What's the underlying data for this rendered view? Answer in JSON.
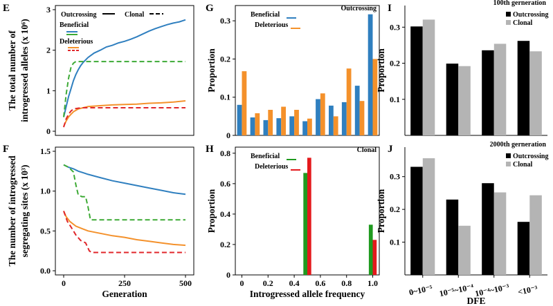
{
  "colors": {
    "blue": "#2f7fbf",
    "orange": "#f4912b",
    "green": "#3daa35",
    "red": "#e0262a",
    "black": "#000000",
    "gray": "#b4b4b4",
    "red_bar": "#e4191c",
    "green_bar": "#1f9a1f"
  },
  "chart_data": [
    {
      "panel": "E",
      "type": "line",
      "ylabel_line1": "The total number of",
      "ylabel_line2": "introgressed alleles (x 10⁶)",
      "xlim": [
        0,
        500
      ],
      "ylim": [
        0,
        3
      ],
      "yticks": [
        {
          "v": 0,
          "label": "0"
        },
        {
          "v": 1,
          "label": "1"
        },
        {
          "v": 2,
          "label": "2"
        },
        {
          "v": 3,
          "label": "3"
        }
      ],
      "legend": {
        "outcrossing": "Outcrossing",
        "clonal": "Clonal",
        "beneficial": "Beneficial",
        "deleterious": "Deleterious"
      },
      "series": [
        {
          "name": "Beneficial outcrossing",
          "color": "blue",
          "dash": false,
          "points": [
            [
              0,
              0.35
            ],
            [
              10,
              0.6
            ],
            [
              20,
              0.85
            ],
            [
              30,
              1.05
            ],
            [
              40,
              1.25
            ],
            [
              50,
              1.4
            ],
            [
              60,
              1.52
            ],
            [
              70,
              1.62
            ],
            [
              80,
              1.7
            ],
            [
              100,
              1.82
            ],
            [
              125,
              1.93
            ],
            [
              150,
              2.0
            ],
            [
              175,
              2.08
            ],
            [
              200,
              2.12
            ],
            [
              225,
              2.18
            ],
            [
              250,
              2.22
            ],
            [
              275,
              2.27
            ],
            [
              300,
              2.33
            ],
            [
              325,
              2.4
            ],
            [
              350,
              2.47
            ],
            [
              375,
              2.53
            ],
            [
              400,
              2.58
            ],
            [
              425,
              2.63
            ],
            [
              450,
              2.67
            ],
            [
              475,
              2.7
            ],
            [
              500,
              2.75
            ]
          ]
        },
        {
          "name": "Beneficial clonal",
          "color": "green",
          "dash": true,
          "points": [
            [
              0,
              0.35
            ],
            [
              10,
              0.9
            ],
            [
              20,
              1.3
            ],
            [
              30,
              1.58
            ],
            [
              40,
              1.68
            ],
            [
              50,
              1.72
            ],
            [
              75,
              1.72
            ],
            [
              500,
              1.72
            ]
          ]
        },
        {
          "name": "Deleterious outcrossing",
          "color": "orange",
          "dash": false,
          "points": [
            [
              0,
              0.12
            ],
            [
              10,
              0.25
            ],
            [
              20,
              0.35
            ],
            [
              30,
              0.42
            ],
            [
              40,
              0.48
            ],
            [
              60,
              0.55
            ],
            [
              80,
              0.58
            ],
            [
              100,
              0.61
            ],
            [
              150,
              0.63
            ],
            [
              200,
              0.65
            ],
            [
              250,
              0.66
            ],
            [
              300,
              0.67
            ],
            [
              350,
              0.69
            ],
            [
              400,
              0.7
            ],
            [
              450,
              0.72
            ],
            [
              500,
              0.75
            ]
          ]
        },
        {
          "name": "Deleterious clonal",
          "color": "red",
          "dash": true,
          "points": [
            [
              0,
              0.1
            ],
            [
              10,
              0.3
            ],
            [
              20,
              0.42
            ],
            [
              30,
              0.5
            ],
            [
              40,
              0.55
            ],
            [
              60,
              0.57
            ],
            [
              80,
              0.58
            ],
            [
              500,
              0.58
            ]
          ]
        }
      ]
    },
    {
      "panel": "F",
      "type": "line",
      "ylabel_line1": "The number of introgressed",
      "ylabel_line2": "segregating sites (x 10³)",
      "xlabel": "Generation",
      "xlim": [
        0,
        500
      ],
      "ylim": [
        0,
        1.5
      ],
      "xticks": [
        {
          "v": 0,
          "label": "0"
        },
        {
          "v": 250,
          "label": "250"
        },
        {
          "v": 500,
          "label": "500"
        }
      ],
      "yticks": [
        {
          "v": 0,
          "label": "0.0"
        },
        {
          "v": 0.5,
          "label": "0.5"
        },
        {
          "v": 1,
          "label": "1.0"
        },
        {
          "v": 1.5,
          "label": "1.5"
        }
      ],
      "series": [
        {
          "name": "Beneficial outcrossing",
          "color": "blue",
          "dash": false,
          "points": [
            [
              0,
              1.33
            ],
            [
              20,
              1.3
            ],
            [
              40,
              1.28
            ],
            [
              60,
              1.25
            ],
            [
              80,
              1.23
            ],
            [
              100,
              1.21
            ],
            [
              150,
              1.17
            ],
            [
              200,
              1.13
            ],
            [
              250,
              1.1
            ],
            [
              300,
              1.07
            ],
            [
              350,
              1.04
            ],
            [
              400,
              1.01
            ],
            [
              450,
              0.98
            ],
            [
              500,
              0.96
            ]
          ]
        },
        {
          "name": "Beneficial clonal",
          "color": "green",
          "dash": true,
          "points": [
            [
              0,
              1.33
            ],
            [
              20,
              1.3
            ],
            [
              40,
              1.24
            ],
            [
              50,
              1.08
            ],
            [
              60,
              0.95
            ],
            [
              75,
              0.93
            ],
            [
              90,
              0.93
            ],
            [
              100,
              0.8
            ],
            [
              110,
              0.64
            ],
            [
              500,
              0.64
            ]
          ]
        },
        {
          "name": "Deleterious outcrossing",
          "color": "orange",
          "dash": false,
          "points": [
            [
              0,
              0.75
            ],
            [
              10,
              0.68
            ],
            [
              25,
              0.62
            ],
            [
              50,
              0.56
            ],
            [
              75,
              0.53
            ],
            [
              100,
              0.5
            ],
            [
              150,
              0.47
            ],
            [
              200,
              0.44
            ],
            [
              250,
              0.42
            ],
            [
              300,
              0.39
            ],
            [
              350,
              0.37
            ],
            [
              400,
              0.35
            ],
            [
              450,
              0.33
            ],
            [
              500,
              0.32
            ]
          ]
        },
        {
          "name": "Deleterious clonal",
          "color": "red",
          "dash": true,
          "points": [
            [
              0,
              0.75
            ],
            [
              15,
              0.62
            ],
            [
              30,
              0.55
            ],
            [
              50,
              0.45
            ],
            [
              70,
              0.38
            ],
            [
              90,
              0.35
            ],
            [
              105,
              0.25
            ],
            [
              115,
              0.23
            ],
            [
              500,
              0.23
            ]
          ]
        }
      ]
    },
    {
      "panel": "G",
      "type": "bar",
      "title": "Outcrossing",
      "ylabel": "Proportion",
      "xlim": [
        -0.05,
        1.05
      ],
      "ylim": [
        0,
        0.34
      ],
      "bar_width": 0.036,
      "yticks": [
        {
          "v": 0,
          "label": "0"
        },
        {
          "v": 0.1,
          "label": "0.1"
        },
        {
          "v": 0.2,
          "label": "0.2"
        },
        {
          "v": 0.3,
          "label": "0.3"
        }
      ],
      "legend": {
        "beneficial": "Beneficial",
        "deleterious": "Deleterious"
      },
      "x": [
        0.0,
        0.1,
        0.2,
        0.3,
        0.4,
        0.5,
        0.6,
        0.7,
        0.8,
        0.9,
        1.0
      ],
      "series": [
        {
          "name": "Beneficial",
          "color": "blue",
          "values": [
            0.08,
            0.047,
            0.04,
            0.045,
            0.05,
            0.037,
            0.095,
            0.078,
            0.087,
            0.13,
            0.317
          ]
        },
        {
          "name": "Deleterious",
          "color": "orange",
          "values": [
            0.168,
            0.058,
            0.067,
            0.075,
            0.067,
            0.044,
            0.11,
            0.05,
            0.175,
            0.09,
            0.2
          ]
        }
      ]
    },
    {
      "panel": "H",
      "type": "bar",
      "title": "Clonal",
      "ylabel": "Proportion",
      "xlabel": "Introgressed allele frequency",
      "xlim": [
        -0.05,
        1.05
      ],
      "ylim": [
        0,
        0.84
      ],
      "bar_width": 0.03,
      "xticks": [
        {
          "v": 0,
          "label": "0"
        },
        {
          "v": 0.2,
          "label": "0.2"
        },
        {
          "v": 0.4,
          "label": "0.4"
        },
        {
          "v": 0.6,
          "label": "0.6"
        },
        {
          "v": 0.8,
          "label": "0.8"
        },
        {
          "v": 1.0,
          "label": "1.0"
        }
      ],
      "yticks": [
        {
          "v": 0,
          "label": "0"
        },
        {
          "v": 0.2,
          "label": "0.2"
        },
        {
          "v": 0.4,
          "label": "0.4"
        },
        {
          "v": 0.6,
          "label": "0.6"
        },
        {
          "v": 0.8,
          "label": "0.8"
        }
      ],
      "legend": {
        "beneficial": "Beneficial",
        "deleterious": "Deleterious"
      },
      "x": [
        0.5,
        1.0
      ],
      "series": [
        {
          "name": "Beneficial",
          "color": "green_bar",
          "values": [
            0.67,
            0.33
          ]
        },
        {
          "name": "Deleterious",
          "color": "red_bar",
          "values": [
            0.77,
            0.23
          ]
        }
      ]
    },
    {
      "panel": "I",
      "type": "bar",
      "title": "100th gerneration",
      "ylabel": "Proportion",
      "ylim": [
        0,
        0.36
      ],
      "yticks": [
        {
          "v": 0.1,
          "label": "0.1"
        },
        {
          "v": 0.2,
          "label": "0.2"
        },
        {
          "v": 0.3,
          "label": "0.3"
        }
      ],
      "legend": {
        "outcrossing": "Outcrossing",
        "clonal": "Clonal"
      },
      "categories": [
        "0~10⁻⁵",
        "10⁻⁵~10⁻⁴",
        "10⁻⁴~10⁻³",
        "<10⁻³"
      ],
      "series": [
        {
          "name": "Outcrossing",
          "color": "black",
          "values": [
            0.302,
            0.199,
            0.236,
            0.262
          ]
        },
        {
          "name": "Clonal",
          "color": "gray",
          "values": [
            0.321,
            0.192,
            0.254,
            0.233
          ]
        }
      ]
    },
    {
      "panel": "J",
      "type": "bar",
      "title": "2000th gerneration",
      "ylabel": "Proportion",
      "xlabel": "DFE",
      "ylim": [
        0,
        0.39
      ],
      "yticks": [
        {
          "v": 0.1,
          "label": "0.1"
        },
        {
          "v": 0.2,
          "label": "0.2"
        },
        {
          "v": 0.3,
          "label": "0.3"
        }
      ],
      "legend": {
        "outcrossing": "Outcrossing",
        "clonal": "Clonal"
      },
      "categories": [
        "0~10⁻⁵",
        "10⁻⁵~10⁻⁴",
        "10⁻⁴~10⁻³",
        "<10⁻³"
      ],
      "series": [
        {
          "name": "Outcrossing",
          "color": "black",
          "values": [
            0.33,
            0.23,
            0.28,
            0.162
          ]
        },
        {
          "name": "Clonal",
          "color": "gray",
          "values": [
            0.356,
            0.15,
            0.252,
            0.243
          ]
        }
      ]
    }
  ]
}
